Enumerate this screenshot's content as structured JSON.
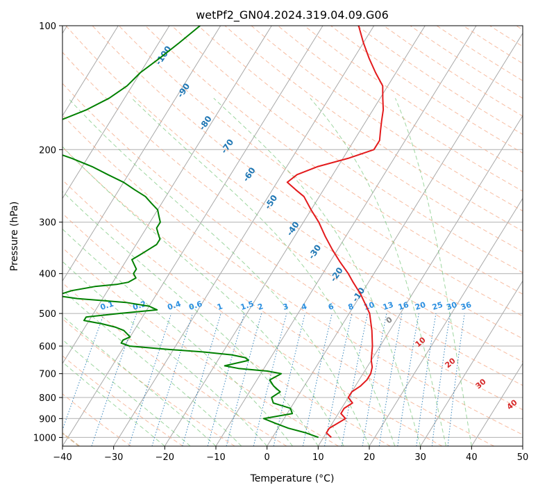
{
  "chart_data": {
    "type": "line",
    "title": "wetPf2_GN04.2024.319.04.09.G06",
    "xlabel": "Temperature (°C)",
    "ylabel": "Pressure (hPa)",
    "xlim": [
      -40,
      50
    ],
    "ylim": [
      1050,
      100
    ],
    "y_scale": "log",
    "skew": "skew-T log-p",
    "x_ticks": [
      "−40",
      "−30",
      "−20",
      "−10",
      "0",
      "10",
      "20",
      "30",
      "40",
      "50"
    ],
    "y_ticks": [
      "100",
      "200",
      "300",
      "400",
      "500",
      "600",
      "700",
      "800",
      "900",
      "1000"
    ],
    "grid": true,
    "series": [
      {
        "role": "temperature",
        "color": "#e31a1c",
        "p": [
          1000,
          975,
          950,
          925,
          900,
          875,
          850,
          825,
          800,
          775,
          750,
          725,
          700,
          675,
          650,
          600,
          550,
          500,
          450,
          420,
          400,
          375,
          350,
          325,
          300,
          280,
          260,
          250,
          240,
          230,
          220,
          210,
          200,
          190,
          180,
          170,
          160,
          150,
          140,
          130,
          120,
          110,
          100
        ],
        "t": [
          11.5,
          10,
          10,
          11,
          12,
          10.5,
          10.5,
          11.5,
          10,
          10,
          11,
          11.5,
          11.5,
          11,
          10,
          8.5,
          6.5,
          4,
          0,
          -3,
          -5,
          -8,
          -11,
          -14,
          -17,
          -20,
          -23,
          -25.5,
          -28,
          -27,
          -24,
          -19,
          -15,
          -15,
          -16,
          -17,
          -18,
          -19.5,
          -21,
          -24,
          -27,
          -30,
          -33
        ]
      },
      {
        "role": "dewpoint",
        "color": "#008000",
        "p": [
          1000,
          975,
          950,
          925,
          900,
          875,
          850,
          825,
          800,
          775,
          750,
          725,
          700,
          690,
          680,
          670,
          660,
          650,
          640,
          630,
          620,
          610,
          600,
          590,
          580,
          570,
          550,
          540,
          530,
          520,
          510,
          500,
          490,
          480,
          470,
          460,
          455,
          450,
          440,
          430,
          425,
          420,
          410,
          400,
          390,
          380,
          370,
          360,
          350,
          340,
          330,
          320,
          310,
          300,
          290,
          280,
          270,
          260,
          250,
          240,
          230,
          220,
          210,
          200,
          196,
          192,
          188,
          185,
          180,
          170,
          160,
          150,
          140,
          130,
          120,
          110,
          100
        ],
        "t": [
          9,
          6,
          2,
          -1,
          -4,
          1,
          0,
          -4,
          -5,
          -4,
          -6,
          -7.5,
          -6,
          -9,
          -15,
          -18,
          -16,
          -14,
          -15,
          -18,
          -24,
          -32,
          -39,
          -41,
          -41,
          -40,
          -42,
          -44,
          -47,
          -51,
          -51,
          -45,
          -38,
          -40,
          -45,
          -55,
          -58,
          -59,
          -57,
          -53,
          -49,
          -47,
          -46,
          -47,
          -47,
          -48,
          -49,
          -48,
          -47,
          -46,
          -46,
          -47,
          -48,
          -48,
          -49,
          -50,
          -52,
          -54,
          -57,
          -60,
          -64,
          -68,
          -73,
          -79,
          -83,
          -85,
          -86,
          -84,
          -82,
          -80,
          -76,
          -73,
          -71,
          -70,
          -68,
          -66,
          -64
        ]
      }
    ],
    "temperature_labels": [
      "-100",
      "-90",
      "-80",
      "-70",
      "-60",
      "-50",
      "-40",
      "-30",
      "-20",
      "-10"
    ],
    "mixing_ratio_labels": [
      "0.1",
      "0.2",
      "0.4",
      "0.6",
      "1",
      "1.5",
      "2",
      "3",
      "4",
      "6",
      "8",
      "10",
      "13",
      "16",
      "20",
      "25",
      "30",
      "36"
    ],
    "isotherm_labels": [
      "0",
      "10",
      "20",
      "30",
      "40"
    ],
    "colors": {
      "mixing_ratio": "#1f77b4",
      "mixing_ratio_light": "#2b8fe0",
      "dry_adiabat": "#f4a582",
      "moist_adiabat": "#74c476",
      "isotherm_label": "#d62728",
      "zero_label": "#7f7f7f"
    }
  }
}
